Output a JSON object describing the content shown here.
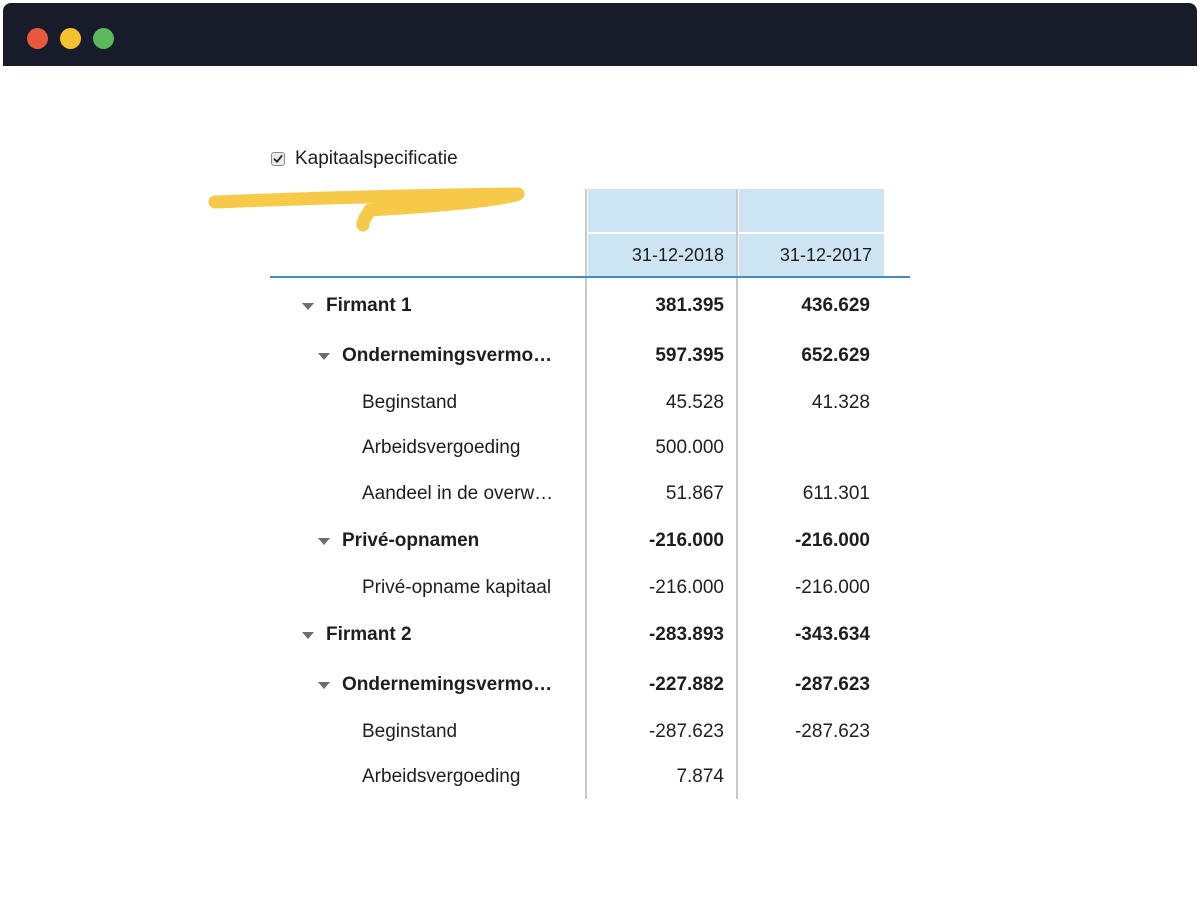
{
  "window": {
    "colors": {
      "bar": "#181b29",
      "close": "#e9573f",
      "minimize": "#f6c12e",
      "maximize": "#5cb85c"
    }
  },
  "section": {
    "checkbox_label": "Kapitaalspecificatie",
    "checked": true
  },
  "table": {
    "columns": [
      "31-12-2018",
      "31-12-2017"
    ],
    "rows": [
      {
        "label": "Firmant 1",
        "level": 0,
        "bold": true,
        "expanded": true,
        "v2018": "381.395",
        "v2017": "436.629"
      },
      {
        "label": "Ondernemingsvermo…",
        "level": 1,
        "bold": true,
        "expanded": true,
        "v2018": "597.395",
        "v2017": "652.629"
      },
      {
        "label": "Beginstand",
        "level": 2,
        "bold": false,
        "v2018": "45.528",
        "v2017": "41.328"
      },
      {
        "label": "Arbeidsvergoeding",
        "level": 2,
        "bold": false,
        "v2018": "500.000",
        "v2017": ""
      },
      {
        "label": "Aandeel in de overw…",
        "level": 2,
        "bold": false,
        "v2018": "51.867",
        "v2017": "611.301"
      },
      {
        "label": "Privé-opnamen",
        "level": 1,
        "bold": true,
        "expanded": true,
        "v2018": "-216.000",
        "v2017": "-216.000"
      },
      {
        "label": "Privé-opname kapitaal",
        "level": 2,
        "bold": false,
        "v2018": "-216.000",
        "v2017": "-216.000"
      },
      {
        "label": "Firmant 2",
        "level": 0,
        "bold": true,
        "expanded": true,
        "v2018": "-283.893",
        "v2017": "-343.634"
      },
      {
        "label": "Ondernemingsvermo…",
        "level": 1,
        "bold": true,
        "expanded": true,
        "v2018": "-227.882",
        "v2017": "-287.623"
      },
      {
        "label": "Beginstand",
        "level": 2,
        "bold": false,
        "v2018": "-287.623",
        "v2017": "-287.623"
      },
      {
        "label": "Arbeidsvergoeding",
        "level": 2,
        "bold": false,
        "v2018": "7.874",
        "v2017": ""
      }
    ]
  },
  "accent_colors": {
    "header_fill": "#cde4f3",
    "header_underline": "#3f8fc6",
    "highlight_marker": "#f7c948"
  }
}
